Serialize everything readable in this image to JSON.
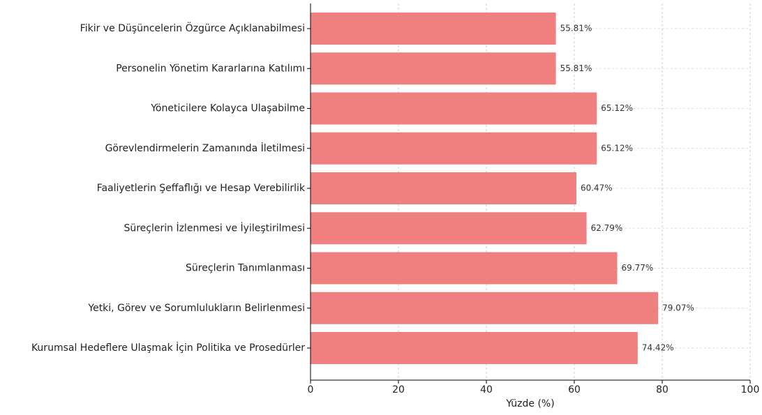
{
  "chart_data": {
    "type": "barh",
    "categories": [
      "Fikir ve Düşüncelerin Özgürce Açıklanabilmesi",
      "Personelin Yönetim Kararlarına Katılımı",
      "Yöneticilere Kolayca Ulaşabilme",
      "Görevlendirmelerin Zamanında İletilmesi",
      "Faaliyetlerin Şeffaflığı ve Hesap Verebilirlik",
      "Süreçlerin İzlenmesi ve İyileştirilmesi",
      "Süreçlerin Tanımlanması",
      "Yetki, Görev ve Sorumlulukların Belirlenmesi",
      "Kurumsal Hedeflere Ulaşmak İçin Politika ve Prosedürler"
    ],
    "values": [
      55.81,
      55.81,
      65.12,
      65.12,
      60.47,
      62.79,
      69.77,
      79.07,
      74.42
    ],
    "value_labels": [
      "55.81%",
      "55.81%",
      "65.12%",
      "65.12%",
      "60.47%",
      "62.79%",
      "69.77%",
      "79.07%",
      "74.42%"
    ],
    "color": "#f08080",
    "x_label": "Yüzde (%)",
    "xlim": [
      0,
      100
    ],
    "xticks": [
      0,
      20,
      40,
      60,
      80,
      100
    ],
    "grid": true
  }
}
